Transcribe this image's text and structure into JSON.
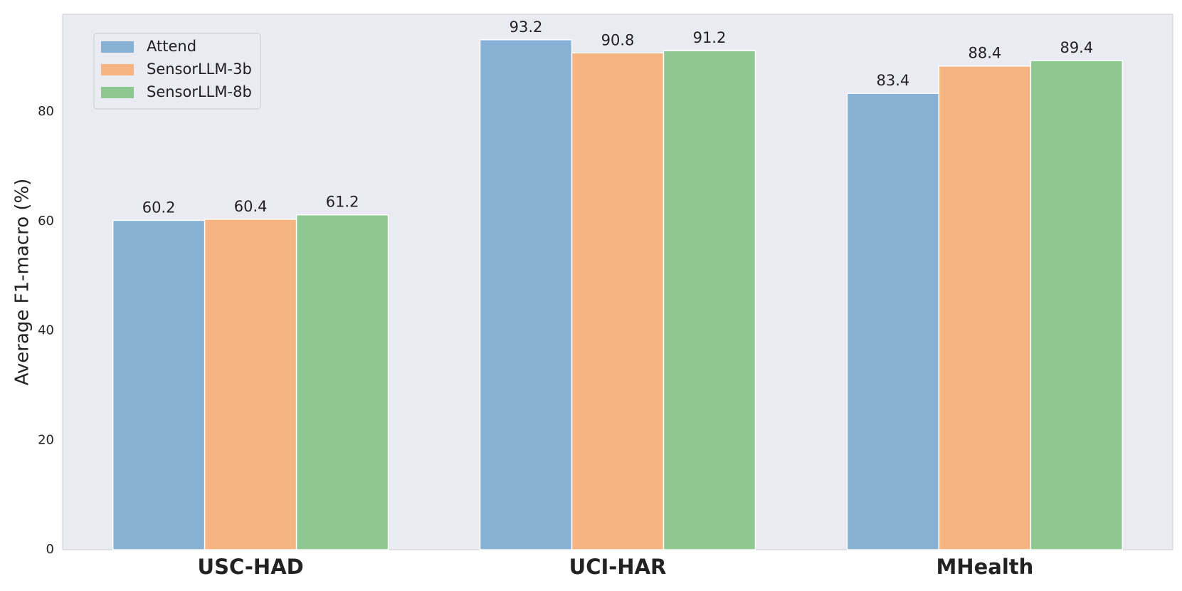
{
  "chart_data": {
    "type": "bar",
    "y_label": "Average F1-macro (%)",
    "categories": [
      "USC-HAD",
      "UCI-HAR",
      "MHealth"
    ],
    "series": [
      {
        "name": "Attend",
        "color": "#86b0d4",
        "values": [
          60.2,
          93.2,
          83.4
        ]
      },
      {
        "name": "SensorLLM-3b",
        "color": "#f5b482",
        "values": [
          60.4,
          90.8,
          88.4
        ]
      },
      {
        "name": "SensorLLM-8b",
        "color": "#8cc88f",
        "values": [
          61.2,
          91.2,
          89.4
        ]
      }
    ],
    "ylim": [
      0,
      97.86
    ],
    "yticks": [
      0,
      20,
      40,
      60,
      80
    ],
    "grid": false,
    "legend": "upper left"
  }
}
